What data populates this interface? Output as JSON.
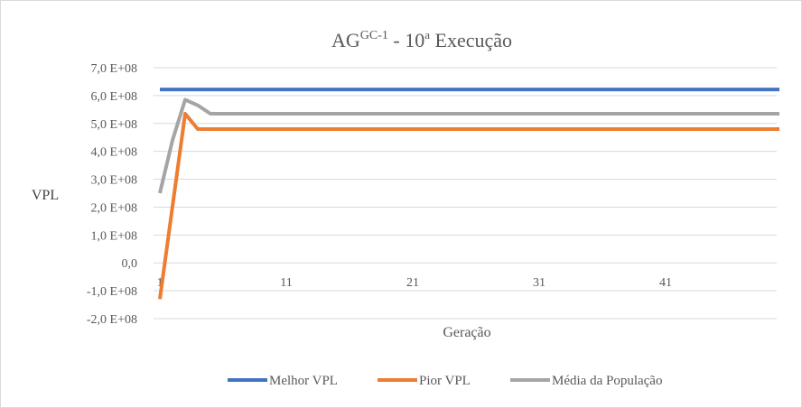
{
  "chart_data": {
    "type": "line",
    "title": "AG",
    "title_superscript": "GC-1",
    "title_suffix": " - 10",
    "title_ordinal": "a",
    "title_tail": " Execução",
    "xlabel": "Geração",
    "ylabel": "VPL",
    "ylim": [
      -200000000,
      700000000
    ],
    "y_ticks": [
      {
        "value": 700000000,
        "label": "7,0 E+08"
      },
      {
        "value": 600000000,
        "label": "6,0 E+08"
      },
      {
        "value": 500000000,
        "label": "5,0 E+08"
      },
      {
        "value": 400000000,
        "label": "4,0 E+08"
      },
      {
        "value": 300000000,
        "label": "3,0 E+08"
      },
      {
        "value": 200000000,
        "label": "2,0 E+08"
      },
      {
        "value": 100000000,
        "label": "1,0 E+08"
      },
      {
        "value": 0,
        "label": "0,0"
      },
      {
        "value": -100000000,
        "label": "-1,0 E+08"
      },
      {
        "value": -200000000,
        "label": "-2,0 E+08"
      }
    ],
    "x_range": [
      1,
      50
    ],
    "x_ticks": [
      {
        "value": 1,
        "label": "1"
      },
      {
        "value": 11,
        "label": "11"
      },
      {
        "value": 21,
        "label": "21"
      },
      {
        "value": 31,
        "label": "31"
      },
      {
        "value": 41,
        "label": "41"
      }
    ],
    "grid": true,
    "legend_position": "bottom",
    "series": [
      {
        "name": "Melhor VPL",
        "color": "#4472c4",
        "points": [
          [
            1,
            622000000
          ],
          [
            50,
            622000000
          ]
        ]
      },
      {
        "name": "Pior VPL",
        "color": "#ed7d31",
        "points": [
          [
            1,
            -130000000
          ],
          [
            3,
            535000000
          ],
          [
            4,
            480000000
          ],
          [
            50,
            480000000
          ]
        ]
      },
      {
        "name": "Média da População",
        "color": "#a5a5a5",
        "points": [
          [
            1,
            250000000
          ],
          [
            2,
            440000000
          ],
          [
            3,
            585000000
          ],
          [
            4,
            565000000
          ],
          [
            5,
            535000000
          ],
          [
            50,
            535000000
          ]
        ]
      }
    ]
  }
}
